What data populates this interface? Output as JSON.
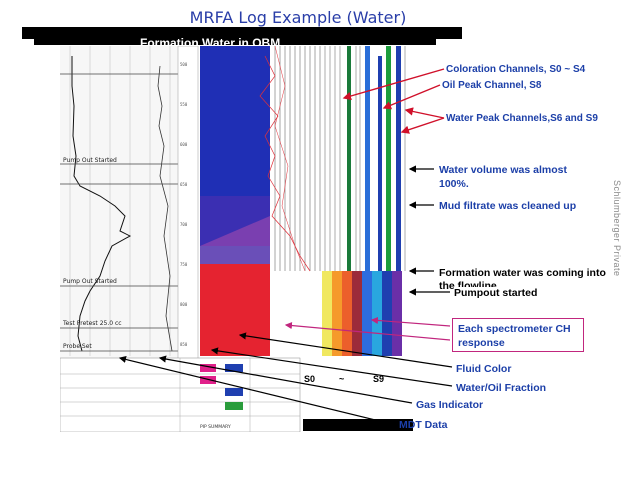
{
  "title": "MRFA Log Example (Water)",
  "banner": "Formation Water in OBM",
  "sidebar_label": "Schlumberger Private",
  "annotations": {
    "coloration": "Coloration Channels, S0 ~ S4",
    "oil_peak": "Oil Peak Channel, S8",
    "water_peak": "Water Peak Channels,S6 and S9",
    "water_volume": "Water volume was almost 100%.",
    "mud_filtrate": "Mud filtrate was cleaned up",
    "formation_water": "Formation water was coming into the flowline.",
    "pumpout": "Pumpout started",
    "spectrometer": "Each spectrometer CH response",
    "fluid_color": "Fluid Color",
    "water_oil": "Water/Oil Fraction",
    "gas": "Gas Indicator",
    "mdt": "MDT Data"
  },
  "channel_labels": {
    "s0": "S0",
    "tilde": "~",
    "s9": "S9"
  },
  "log_text": {
    "t1": "Pump Out Started",
    "t2": "Pump Out Started",
    "t3": "Test Pretest 25.0 cc",
    "t4": "Probe Set",
    "footer": "PIP SUMMARY"
  },
  "colors": {
    "title": "#2a3ea8",
    "annotation": "#1c3fa8",
    "arrow": "#d0102a",
    "box_border": "#c1267e"
  }
}
